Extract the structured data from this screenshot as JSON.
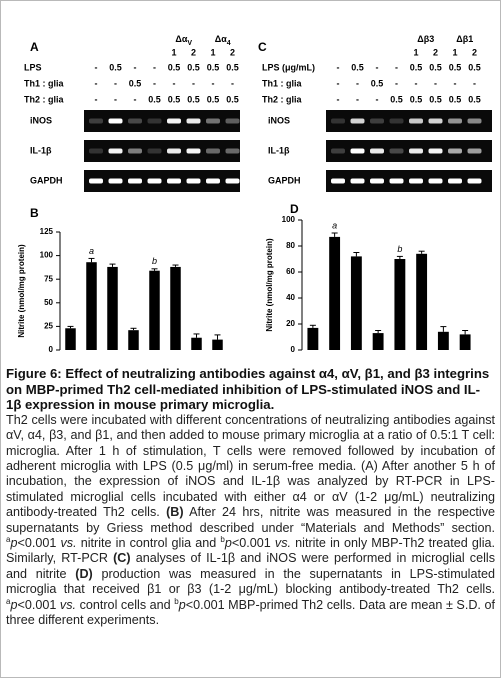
{
  "gels": [
    {
      "panel": "A",
      "groups": [
        {
          "label": "Δα",
          "sub": "V",
          "lanes": [
            "1",
            "2"
          ]
        },
        {
          "label": "Δα",
          "sub": "4",
          "lanes": [
            "1",
            "2"
          ]
        }
      ],
      "rows": [
        {
          "label": "LPS",
          "cells": [
            "-",
            "0.5",
            "-",
            "-",
            "0.5",
            "0.5",
            "0.5",
            "0.5"
          ]
        },
        {
          "label": "Th1 : glia",
          "cells": [
            "-",
            "-",
            "0.5",
            "-",
            "-",
            "-",
            "-",
            "-"
          ]
        },
        {
          "label": "Th2 : glia",
          "cells": [
            "-",
            "-",
            "-",
            "0.5",
            "0.5",
            "0.5",
            "0.5",
            "0.5"
          ]
        }
      ],
      "genes": [
        "iNOS",
        "IL-1β",
        "GAPDH"
      ]
    },
    {
      "panel": "C",
      "groups": [
        {
          "label": "Δβ3",
          "lanes": [
            "1",
            "2"
          ]
        },
        {
          "label": "Δβ1",
          "lanes": [
            "1",
            "2"
          ]
        }
      ],
      "rows": [
        {
          "label": "LPS (μg/mL)",
          "cells": [
            "-",
            "0.5",
            "-",
            "-",
            "0.5",
            "0.5",
            "0.5",
            "0.5"
          ]
        },
        {
          "label": "Th1 : glia",
          "cells": [
            "-",
            "-",
            "0.5",
            "-",
            "-",
            "-",
            "-",
            "-"
          ]
        },
        {
          "label": "Th2 : glia",
          "cells": [
            "-",
            "-",
            "-",
            "0.5",
            "0.5",
            "0.5",
            "0.5",
            "0.5"
          ]
        }
      ],
      "genes": [
        "iNOS",
        "IL-1β",
        "GAPDH"
      ]
    }
  ],
  "chart_data": [
    {
      "type": "bar",
      "panel": "B",
      "y_label": "Nitrite (nmol/mg protein)",
      "categories": [
        null,
        null,
        null,
        null,
        null,
        null,
        null,
        null
      ],
      "values": [
        23,
        93,
        88,
        21,
        84,
        88,
        13,
        11
      ],
      "errors": [
        2,
        4,
        3,
        2,
        2,
        2,
        4,
        5
      ],
      "bar_labels": [
        null,
        "a",
        null,
        null,
        "b",
        null,
        null,
        null
      ],
      "color": "#000000",
      "ylim": [
        0,
        125
      ],
      "yticks": [
        0,
        25,
        50,
        75,
        100,
        125
      ]
    },
    {
      "type": "bar",
      "panel": "D",
      "y_label": "Nitrite (nmol/mg protein)",
      "categories": [
        null,
        null,
        null,
        null,
        null,
        null,
        null,
        null
      ],
      "values": [
        17,
        87,
        72,
        13,
        70,
        74,
        14,
        12
      ],
      "errors": [
        2,
        3,
        3,
        2,
        2,
        2,
        4,
        3
      ],
      "bar_labels": [
        null,
        "a",
        null,
        null,
        "b",
        null,
        null,
        null
      ],
      "color": "#000000",
      "ylim": [
        0,
        100
      ],
      "yticks": [
        0,
        20,
        40,
        60,
        80,
        100
      ]
    }
  ],
  "caption": {
    "title": "Figure 6: Effect of neutralizing antibodies against α4, αV, β1, and β3 integrins on MBP-primed Th2 cell-mediated inhibition of LPS-stimulated iNOS and IL-1β expression in mouse primary microglia.",
    "body": [
      "Th2 cells were incubated with different concentrations of neutralizing antibodies against αV, α4, β3, and β1, and then added to mouse primary microglia at a ratio of 0.5:1 T cell: microglia. After 1 h of stimulation, T cells were removed followed by incubation of adherent microglia with LPS (0.5 μg/ml) in serum-free media. (A) After another 5 h of incubation, the expression of iNOS and IL-1β was analyzed by RT-PCR in LPS-stimulated microglial cells incubated with either α4 or αV (1-2 μg/mL) neutralizing antibody-treated Th2 cells.",
      "(B)",
      "After 24 hrs, nitrite was measured in the respective supernatants by Griess method described under “Materials and Methods” section.",
      "a",
      "p",
      "<0.001",
      "vs.",
      "nitrite in control glia and",
      "b",
      "p",
      "<0.001",
      "vs.",
      "nitrite in only MBP-Th2 treated glia. Similarly, RT-PCR",
      "(C)",
      "analyses of IL-1β and iNOS were performed in microglial cells and nitrite",
      "(D)",
      "production was measured in the supernatants in LPS-stimulated microglia that received β1 or β3 (1-2 μg/mL) blocking antibody-treated Th2 cells.",
      "a",
      "p",
      "<0.001",
      "vs.",
      "control cells and",
      "b",
      "p",
      "<0.001 MBP-primed Th2 cells. Data are mean ± S.D. of three different experiments."
    ]
  }
}
